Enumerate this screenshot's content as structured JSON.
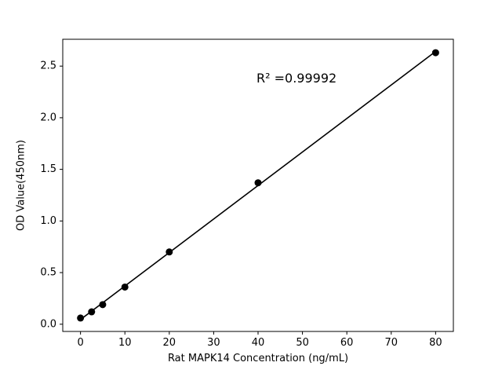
{
  "chart_data": {
    "type": "scatter",
    "title": "",
    "xlabel": "Rat MAPK14 Concentration (ng/mL)",
    "ylabel": "OD Value(450nm)",
    "x": [
      0,
      2.5,
      5,
      10,
      20,
      40,
      80
    ],
    "y": [
      0.06,
      0.12,
      0.19,
      0.36,
      0.7,
      1.37,
      2.63
    ],
    "fit_line": true,
    "annotation": {
      "text": "R² =0.99992",
      "r_squared": 0.99992
    },
    "xlim": [
      -4,
      84
    ],
    "ylim": [
      -0.07,
      2.76
    ],
    "xticks": [
      0,
      10,
      20,
      30,
      40,
      50,
      60,
      70,
      80
    ],
    "yticks": [
      0.0,
      0.5,
      1.0,
      1.5,
      2.0,
      2.5
    ],
    "grid": false,
    "legend": null,
    "marker_color": "#000000",
    "line_color": "#000000",
    "background": "#ffffff"
  }
}
